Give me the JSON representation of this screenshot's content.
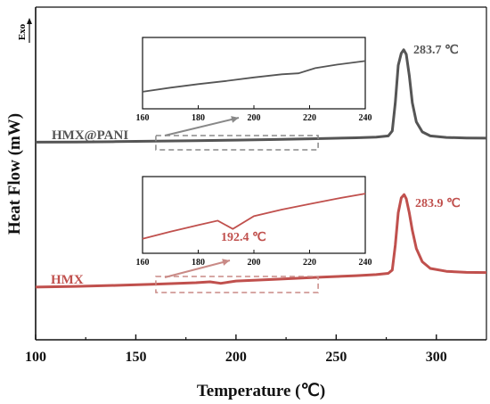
{
  "chart_data": [
    {
      "type": "line",
      "xlabel": "Temperature (℃)",
      "ylabel": "Heat Flow (mW)",
      "exo_label": "Exo",
      "xlim": [
        100,
        325
      ],
      "xticks": [
        100,
        150,
        200,
        250,
        300
      ],
      "yaxis_ticks": false,
      "grid": false,
      "series": [
        {
          "name": "HMX@PANI",
          "color": "#555555",
          "peak_label": "283.7 ℃",
          "x": [
            100,
            120,
            140,
            160,
            180,
            200,
            220,
            240,
            260,
            270,
            276,
            278,
            279.5,
            281,
            282.5,
            283.7,
            285,
            286.5,
            288,
            290,
            293,
            297,
            305,
            315,
            325
          ],
          "y": [
            0.58,
            0.6,
            0.64,
            0.68,
            0.73,
            0.79,
            0.85,
            0.93,
            1.02,
            1.08,
            1.2,
            1.7,
            4.5,
            8.2,
            9.4,
            9.75,
            9.3,
            7.2,
            4.5,
            2.6,
            1.6,
            1.2,
            1.05,
            1.0,
            0.98
          ]
        },
        {
          "name": "HMX",
          "color": "#c0504d",
          "peak_label": "283.9 ℃",
          "x": [
            100,
            120,
            140,
            160,
            180,
            187,
            192.4,
            200,
            220,
            240,
            260,
            270,
            276,
            278,
            279.5,
            281,
            282.5,
            283.9,
            285,
            286.5,
            288,
            290,
            293,
            297,
            305,
            315,
            325
          ],
          "y": [
            0.55,
            0.63,
            0.75,
            0.9,
            1.08,
            1.18,
            1.0,
            1.28,
            1.5,
            1.72,
            1.93,
            2.05,
            2.2,
            2.6,
            5.6,
            9.5,
            11.3,
            11.7,
            11.2,
            9.5,
            7.4,
            5.2,
            3.6,
            2.8,
            2.45,
            2.32,
            2.3
          ]
        }
      ],
      "insets": [
        {
          "series": "HMX@PANI",
          "xlim": [
            160,
            240
          ],
          "xticks": [
            160,
            180,
            200,
            220,
            240
          ],
          "x": [
            160,
            170,
            180,
            190,
            200,
            210,
            216,
            222,
            230,
            240
          ],
          "y": [
            0.22,
            0.3,
            0.37,
            0.43,
            0.5,
            0.56,
            0.58,
            0.68,
            0.75,
            0.82
          ],
          "annotation": ""
        },
        {
          "series": "HMX",
          "xlim": [
            160,
            240
          ],
          "xticks": [
            160,
            180,
            200,
            220,
            240
          ],
          "x": [
            160,
            170,
            180,
            187,
            192.4,
            200,
            210,
            220,
            230,
            240
          ],
          "y": [
            0.15,
            0.28,
            0.4,
            0.48,
            0.33,
            0.56,
            0.68,
            0.78,
            0.88,
            0.97
          ],
          "annotation": "192.4 ℃"
        }
      ]
    }
  ]
}
